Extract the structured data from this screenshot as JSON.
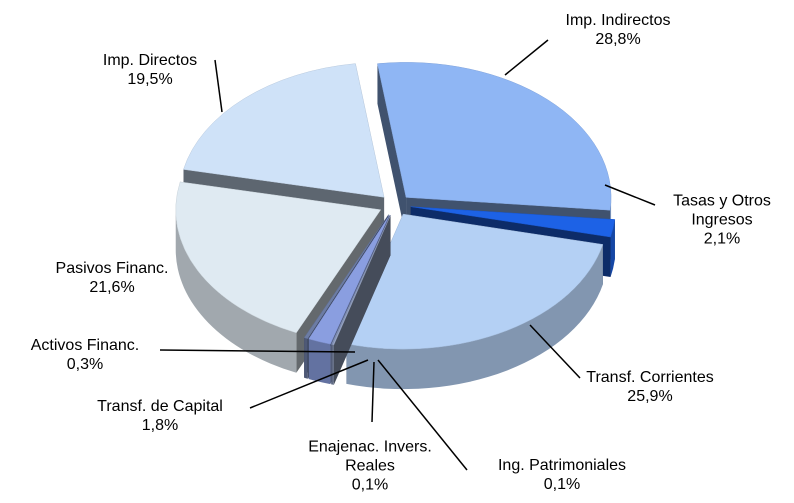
{
  "chart_data": {
    "type": "pie",
    "categories": [
      "Imp. Indirectos",
      "Tasas y Otros Ingresos",
      "Transf. Corrientes",
      "Ing. Patrimoniales",
      "Enajenac. Invers. Reales",
      "Transf. de Capital",
      "Activos Financ.",
      "Pasivos Financ.",
      "Imp. Directos"
    ],
    "values": [
      28.8,
      2.1,
      25.9,
      0.1,
      0.1,
      1.8,
      0.3,
      21.6,
      19.5
    ],
    "value_labels": [
      "28,8%",
      "2,1%",
      "25,9%",
      "0,1%",
      "0,1%",
      "1,8%",
      "0,3%",
      "21,6%",
      "19,5%"
    ],
    "colors": [
      "#8fb6f4",
      "#1d62e6",
      "#b4d0f4",
      "#9aa8c8",
      "#7f8fb8",
      "#8a9ee0",
      "#6c7ca4",
      "#dfeaf2",
      "#cfe2f8"
    ]
  }
}
